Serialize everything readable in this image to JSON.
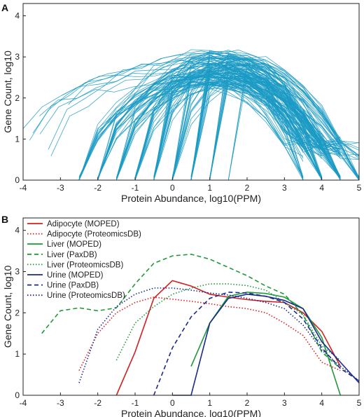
{
  "chart_data": [
    {
      "type": "line",
      "panel_label": "A",
      "xlabel": "Protein Abundance, log10(PPM)",
      "ylabel": "Gene Count, log10",
      "xlim": [
        -4,
        5
      ],
      "ylim": [
        0,
        4.3
      ],
      "xticks": [
        "-4",
        "-3",
        "-2",
        "-1",
        "0",
        "1",
        "2",
        "3",
        "4",
        "5"
      ],
      "yticks": [
        "0",
        "1",
        "2",
        "3",
        "4"
      ],
      "color": "#1a9ac4",
      "grid": false,
      "legend": "none",
      "note_series": "many overlapping per-dataset curves rising from the baseline at half-log steps and peaking near y≈3 around x≈1"
    },
    {
      "type": "line",
      "panel_label": "B",
      "xlabel": "Protein Abundance, log10(PPM)",
      "ylabel": "Gene Count, log10",
      "xlim": [
        -4,
        5
      ],
      "ylim": [
        0,
        4.3
      ],
      "xticks": [
        "-4",
        "-3",
        "-2",
        "-1",
        "0",
        "1",
        "2",
        "3",
        "4",
        "5"
      ],
      "yticks": [
        "0",
        "1",
        "2",
        "3",
        "4"
      ],
      "grid": false,
      "legend": "top-left",
      "series": [
        {
          "name": "Adipocyte (MOPED)",
          "color": "#d42020",
          "dash": "solid",
          "x": [
            -1.5,
            -1,
            -0.5,
            0,
            0.5,
            1,
            1.5,
            2,
            2.5,
            3,
            3.5,
            4,
            4.5
          ],
          "y": [
            0,
            1.05,
            2.35,
            2.78,
            2.65,
            2.45,
            2.38,
            2.32,
            2.28,
            2.25,
            2.0,
            1.55,
            0.7
          ]
        },
        {
          "name": "Adipocyte (ProteomicsDB)",
          "color": "#d42020",
          "dash": "dot",
          "x": [
            -2.5,
            -2,
            -1.5,
            -1,
            -0.5,
            0,
            0.5,
            1,
            1.5,
            2,
            2.5,
            3,
            3.5,
            4,
            4.5
          ],
          "y": [
            0.6,
            1.5,
            2.0,
            2.25,
            2.38,
            2.33,
            2.28,
            2.22,
            2.15,
            2.1,
            2.0,
            1.75,
            1.45,
            0.8,
            0.6
          ]
        },
        {
          "name": "Liver (MOPED)",
          "color": "#1f9a3a",
          "dash": "solid",
          "x": [
            0.5,
            1,
            1.5,
            2,
            2.5,
            3,
            3.5,
            4,
            4.5
          ],
          "y": [
            0.7,
            1.75,
            2.4,
            2.5,
            2.47,
            2.38,
            2.1,
            1.4,
            0
          ]
        },
        {
          "name": "Liver (PaxDB)",
          "color": "#1f9a3a",
          "dash": "dash",
          "x": [
            -3.5,
            -3,
            -2.5,
            -2,
            -1.5,
            -1,
            -0.5,
            0,
            0.5,
            1,
            1.5,
            2,
            2.5,
            3,
            3.5,
            4,
            4.5
          ],
          "y": [
            1.5,
            2.05,
            2.12,
            2.05,
            2.12,
            2.7,
            3.2,
            3.38,
            3.42,
            3.3,
            3.1,
            2.9,
            2.65,
            2.45,
            1.95,
            1.05,
            0.65
          ]
        },
        {
          "name": "Liver (ProteomicsDB)",
          "color": "#1f9a3a",
          "dash": "dot",
          "x": [
            -1.5,
            -1,
            -0.5,
            0,
            0.5,
            1,
            1.5,
            2,
            2.5,
            3,
            3.5,
            4,
            4.5
          ],
          "y": [
            0.85,
            1.75,
            2.15,
            2.45,
            2.6,
            2.7,
            2.7,
            2.66,
            2.55,
            2.25,
            1.95,
            1.2,
            0.85
          ]
        },
        {
          "name": "Urine (MOPED)",
          "color": "#1a2a8c",
          "dash": "solid",
          "x": [
            0,
            0.5,
            1,
            1.5,
            2,
            2.5,
            3,
            3.5,
            4,
            4.5,
            5
          ],
          "y": [
            0,
            0,
            1.75,
            2.35,
            2.45,
            2.4,
            2.3,
            2.1,
            1.3,
            0.8,
            0.3
          ]
        },
        {
          "name": "Urine (PaxDB)",
          "color": "#1a2a8c",
          "dash": "dash",
          "x": [
            -0.5,
            0,
            0.5,
            1,
            1.5,
            2,
            2.5,
            3,
            3.5,
            4,
            4.5,
            5
          ],
          "y": [
            0,
            1.15,
            1.9,
            2.35,
            2.5,
            2.48,
            2.4,
            2.25,
            1.85,
            1.15,
            0.65,
            0.35
          ]
        },
        {
          "name": "Urine (ProteomicsDB)",
          "color": "#1a2a8c",
          "dash": "dot",
          "x": [
            -2.5,
            -2,
            -1.5,
            -1,
            -0.5,
            0,
            0.5,
            1,
            1.5,
            2,
            2.5,
            3,
            3.5,
            4,
            4.5,
            5
          ],
          "y": [
            0.3,
            1.6,
            2.15,
            2.45,
            2.6,
            2.6,
            2.55,
            2.48,
            2.43,
            2.35,
            2.25,
            2.1,
            1.7,
            1.1,
            0.7,
            0.35
          ]
        }
      ]
    }
  ]
}
